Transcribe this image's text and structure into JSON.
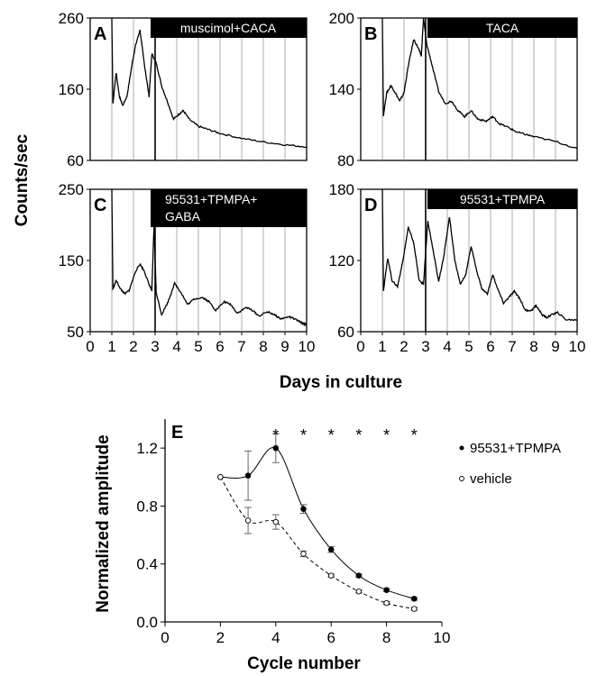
{
  "chart_data": [
    {
      "panel": "A",
      "type": "line",
      "treatment": "muscimol+CACA",
      "xlim": [
        0,
        10
      ],
      "ylim": [
        60,
        260
      ],
      "yticks": [
        60,
        160,
        260
      ],
      "xticks": [
        0,
        1,
        2,
        3,
        4,
        5,
        6,
        7,
        8,
        9,
        10
      ],
      "treatment_start": 3,
      "trace": {
        "x": [
          1,
          1.05,
          1.2,
          1.35,
          1.5,
          1.7,
          1.95,
          2.1,
          2.3,
          2.5,
          2.72,
          2.85,
          3.05,
          3.3,
          3.6,
          3.85,
          4.1,
          4.3,
          4.6,
          5,
          5.5,
          6,
          7,
          8,
          9,
          10
        ],
        "y": [
          260,
          140,
          183,
          150,
          137,
          150,
          198,
          222,
          243,
          196,
          150,
          210,
          197,
          165,
          140,
          118,
          125,
          130,
          117,
          108,
          103,
          98,
          91,
          86,
          82,
          79
        ]
      }
    },
    {
      "panel": "B",
      "type": "line",
      "treatment": "TACA",
      "xlim": [
        0,
        10
      ],
      "ylim": [
        80,
        200
      ],
      "yticks": [
        80,
        140,
        200
      ],
      "xticks": [
        0,
        1,
        2,
        3,
        4,
        5,
        6,
        7,
        8,
        9,
        10
      ],
      "treatment_start": 3,
      "trace": {
        "x": [
          1,
          1.05,
          1.2,
          1.4,
          1.6,
          1.8,
          2.0,
          2.2,
          2.45,
          2.65,
          2.8,
          2.9,
          3.05,
          3.3,
          3.6,
          3.9,
          4.2,
          4.5,
          4.8,
          5.1,
          5.4,
          5.8,
          6.1,
          6.4,
          6.8,
          7.2,
          7.6,
          8,
          9,
          10
        ],
        "y": [
          200,
          118,
          137,
          143,
          137,
          130,
          137,
          160,
          182,
          175,
          168,
          200,
          178,
          160,
          138,
          128,
          130,
          122,
          117,
          122,
          115,
          113,
          117,
          111,
          108,
          104,
          102,
          100,
          96,
          90
        ]
      }
    },
    {
      "panel": "C",
      "type": "line",
      "treatment": "95531+TPMPA+GABA",
      "xlim": [
        0,
        10
      ],
      "ylim": [
        50,
        250
      ],
      "yticks": [
        50,
        150,
        250
      ],
      "xticks": [
        0,
        1,
        2,
        3,
        4,
        5,
        6,
        7,
        8,
        9,
        10
      ],
      "treatment_start": 3,
      "trace": {
        "x": [
          1,
          1.05,
          1.2,
          1.4,
          1.6,
          1.8,
          2.1,
          2.3,
          2.5,
          2.7,
          2.85,
          2.95,
          3.05,
          3.3,
          3.6,
          3.9,
          4.2,
          4.5,
          4.8,
          5.2,
          5.5,
          5.8,
          6.2,
          6.5,
          6.8,
          7.2,
          7.5,
          7.8,
          8.2,
          8.5,
          8.8,
          9.2,
          9.5,
          9.8,
          10
        ],
        "y": [
          250,
          110,
          122,
          110,
          103,
          108,
          135,
          145,
          135,
          118,
          108,
          200,
          105,
          74,
          92,
          118,
          105,
          88,
          96,
          98,
          92,
          80,
          92,
          88,
          76,
          84,
          80,
          72,
          78,
          74,
          68,
          71,
          67,
          62,
          60
        ]
      }
    },
    {
      "panel": "D",
      "type": "line",
      "treatment": "95531+TPMPA",
      "xlim": [
        0,
        10
      ],
      "ylim": [
        60,
        180
      ],
      "yticks": [
        60,
        120,
        180
      ],
      "xticks": [
        0,
        1,
        2,
        3,
        4,
        5,
        6,
        7,
        8,
        9,
        10
      ],
      "treatment_start": 3,
      "trace": {
        "x": [
          1,
          1.05,
          1.25,
          1.45,
          1.7,
          1.95,
          2.2,
          2.45,
          2.7,
          2.9,
          3.1,
          3.35,
          3.6,
          3.85,
          4.1,
          4.35,
          4.6,
          4.85,
          5.1,
          5.35,
          5.6,
          5.85,
          6.1,
          6.35,
          6.6,
          6.9,
          7.1,
          7.35,
          7.6,
          7.9,
          8.1,
          8.4,
          8.6,
          8.9,
          9.1,
          9.5,
          10
        ],
        "y": [
          180,
          95,
          122,
          103,
          98,
          120,
          148,
          135,
          103,
          100,
          153,
          128,
          102,
          125,
          157,
          120,
          100,
          108,
          132,
          112,
          96,
          92,
          108,
          95,
          84,
          90,
          94,
          88,
          78,
          78,
          82,
          74,
          72,
          75,
          76,
          70,
          70
        ]
      }
    },
    {
      "panel": "E",
      "type": "scatter",
      "xlabel": "Cycle number",
      "ylabel": "Normalized amplitude",
      "xlim": [
        0,
        10
      ],
      "ylim": [
        0,
        1.4
      ],
      "xticks": [
        0,
        2,
        4,
        6,
        8,
        10
      ],
      "yticks": [
        0.0,
        0.4,
        0.8,
        1.2
      ],
      "significance_marker": "*",
      "significant_x": [
        4,
        5,
        6,
        7,
        8,
        9
      ],
      "series": [
        {
          "name": "95531+TPMPA",
          "marker": "filled",
          "line": "solid",
          "x": [
            2,
            3,
            4,
            5,
            6,
            7,
            8,
            9
          ],
          "y": [
            1.0,
            1.01,
            1.2,
            0.78,
            0.5,
            0.32,
            0.22,
            0.16
          ],
          "err": [
            0,
            0.17,
            0.1,
            0.03,
            0.02,
            0.01,
            0.01,
            0.01
          ]
        },
        {
          "name": "vehicle",
          "marker": "open",
          "line": "dashed",
          "x": [
            2,
            3,
            4,
            5,
            6,
            7,
            8,
            9
          ],
          "y": [
            1.0,
            0.7,
            0.69,
            0.47,
            0.32,
            0.21,
            0.13,
            0.09
          ],
          "err": [
            0,
            0.09,
            0.05,
            0.02,
            0.01,
            0.01,
            0.01,
            0.01
          ]
        }
      ]
    }
  ],
  "labels": {
    "top_ylabel": "Counts/sec",
    "top_xlabel": "Days in culture",
    "panel_A": "A",
    "panel_B": "B",
    "panel_C": "C",
    "panel_D": "D",
    "panel_E": "E",
    "bar_A": "muscimol+CACA",
    "bar_B": "TACA",
    "bar_C_line1": "95531+TPMPA+",
    "bar_C_line2": "GABA",
    "bar_D": "95531+TPMPA",
    "legend_filled": "95531+TPMPA",
    "legend_open": "vehicle"
  }
}
